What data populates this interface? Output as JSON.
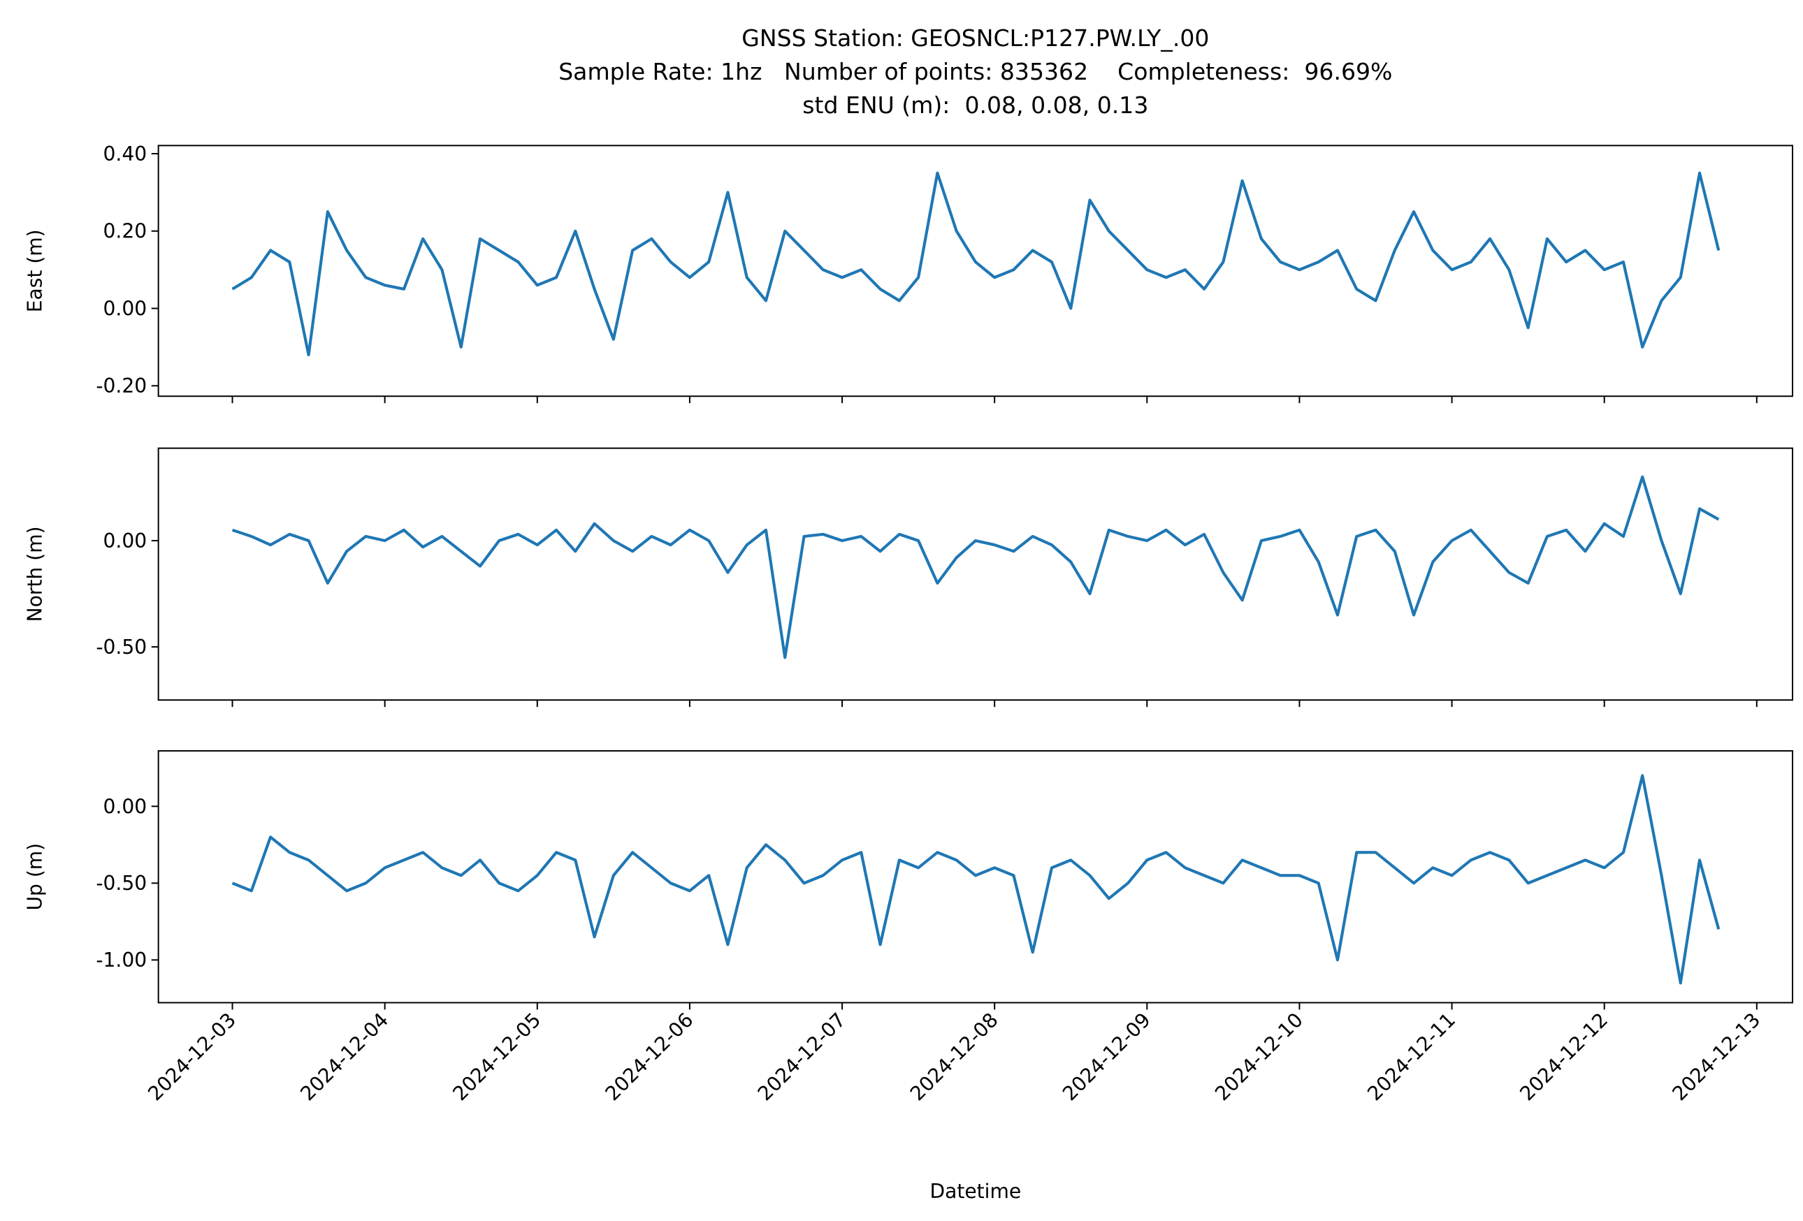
{
  "chart_data": [
    {
      "type": "line",
      "title": [
        "GNSS Station: GEOSNCL:P127.PW.LY_.00",
        "Sample Rate: 1hz   Number of points: 835362    Completeness:  96.69%",
        "std ENU (m):  0.08, 0.08, 0.13"
      ],
      "ylabel": "East (m)",
      "color": "#1f77b4",
      "xlim": [
        "2024-12-02T12:21",
        "2024-12-13T05:38"
      ],
      "xticks": [
        "2024-12-03",
        "2024-12-04",
        "2024-12-05",
        "2024-12-06",
        "2024-12-07",
        "2024-12-08",
        "2024-12-09",
        "2024-12-10",
        "2024-12-11",
        "2024-12-12",
        "2024-12-13"
      ],
      "ylim": [
        -0.227,
        0.421
      ],
      "yticks": [
        {
          "value": 0.4,
          "label": "0.40"
        },
        {
          "value": 0.2,
          "label": "0.20"
        },
        {
          "value": 0,
          "label": "0.00"
        },
        {
          "value": -0.2,
          "label": "-0.20"
        }
      ],
      "x": [
        "2024-12-03T00:00",
        "2024-12-03T03:00",
        "2024-12-03T06:00",
        "2024-12-03T09:00",
        "2024-12-03T12:00",
        "2024-12-03T15:00",
        "2024-12-03T18:00",
        "2024-12-03T21:00",
        "2024-12-04T00:00",
        "2024-12-04T03:00",
        "2024-12-04T06:00",
        "2024-12-04T09:00",
        "2024-12-04T12:00",
        "2024-12-04T15:00",
        "2024-12-04T18:00",
        "2024-12-04T21:00",
        "2024-12-05T00:00",
        "2024-12-05T03:00",
        "2024-12-05T06:00",
        "2024-12-05T09:00",
        "2024-12-05T12:00",
        "2024-12-05T15:00",
        "2024-12-05T18:00",
        "2024-12-05T21:00",
        "2024-12-06T00:00",
        "2024-12-06T03:00",
        "2024-12-06T06:00",
        "2024-12-06T09:00",
        "2024-12-06T12:00",
        "2024-12-06T15:00",
        "2024-12-06T18:00",
        "2024-12-06T21:00",
        "2024-12-07T00:00",
        "2024-12-07T03:00",
        "2024-12-07T06:00",
        "2024-12-07T09:00",
        "2024-12-07T12:00",
        "2024-12-07T15:00",
        "2024-12-07T18:00",
        "2024-12-07T21:00",
        "2024-12-08T00:00",
        "2024-12-08T03:00",
        "2024-12-08T06:00",
        "2024-12-08T09:00",
        "2024-12-08T12:00",
        "2024-12-08T15:00",
        "2024-12-08T18:00",
        "2024-12-08T21:00",
        "2024-12-09T00:00",
        "2024-12-09T03:00",
        "2024-12-09T06:00",
        "2024-12-09T09:00",
        "2024-12-09T12:00",
        "2024-12-09T15:00",
        "2024-12-09T18:00",
        "2024-12-09T21:00",
        "2024-12-10T00:00",
        "2024-12-10T03:00",
        "2024-12-10T06:00",
        "2024-12-10T09:00",
        "2024-12-10T12:00",
        "2024-12-10T15:00",
        "2024-12-10T18:00",
        "2024-12-10T21:00",
        "2024-12-11T00:00",
        "2024-12-11T03:00",
        "2024-12-11T06:00",
        "2024-12-11T09:00",
        "2024-12-11T12:00",
        "2024-12-11T15:00",
        "2024-12-11T18:00",
        "2024-12-11T21:00",
        "2024-12-12T00:00",
        "2024-12-12T03:00",
        "2024-12-12T06:00",
        "2024-12-12T09:00",
        "2024-12-12T12:00",
        "2024-12-12T15:00",
        "2024-12-12T18:00"
      ],
      "values": [
        0.05,
        0.08,
        0.15,
        0.12,
        -0.12,
        0.25,
        0.15,
        0.08,
        0.06,
        0.05,
        0.18,
        0.1,
        -0.1,
        0.18,
        0.15,
        0.12,
        0.06,
        0.08,
        0.2,
        0.05,
        -0.08,
        0.15,
        0.18,
        0.12,
        0.08,
        0.12,
        0.3,
        0.08,
        0.02,
        0.2,
        0.15,
        0.1,
        0.08,
        0.1,
        0.05,
        0.02,
        0.08,
        0.35,
        0.2,
        0.12,
        0.08,
        0.1,
        0.15,
        0.12,
        0.0,
        0.28,
        0.2,
        0.15,
        0.1,
        0.08,
        0.1,
        0.05,
        0.12,
        0.33,
        0.18,
        0.12,
        0.1,
        0.12,
        0.15,
        0.05,
        0.02,
        0.15,
        0.25,
        0.15,
        0.1,
        0.12,
        0.18,
        0.1,
        -0.05,
        0.18,
        0.12,
        0.15,
        0.1,
        0.12,
        -0.1,
        0.02,
        0.08,
        0.35,
        0.15
      ]
    },
    {
      "type": "line",
      "ylabel": "North (m)",
      "color": "#1f77b4",
      "xlim": [
        "2024-12-02T12:21",
        "2024-12-13T05:38"
      ],
      "xticks": [
        "2024-12-03",
        "2024-12-04",
        "2024-12-05",
        "2024-12-06",
        "2024-12-07",
        "2024-12-08",
        "2024-12-09",
        "2024-12-10",
        "2024-12-11",
        "2024-12-12",
        "2024-12-13"
      ],
      "ylim": [
        -0.75,
        0.435
      ],
      "yticks": [
        {
          "value": 0,
          "label": "0.00"
        },
        {
          "value": -0.5,
          "label": "-0.50"
        }
      ],
      "x": [
        "2024-12-03T00:00",
        "2024-12-03T03:00",
        "2024-12-03T06:00",
        "2024-12-03T09:00",
        "2024-12-03T12:00",
        "2024-12-03T15:00",
        "2024-12-03T18:00",
        "2024-12-03T21:00",
        "2024-12-04T00:00",
        "2024-12-04T03:00",
        "2024-12-04T06:00",
        "2024-12-04T09:00",
        "2024-12-04T12:00",
        "2024-12-04T15:00",
        "2024-12-04T18:00",
        "2024-12-04T21:00",
        "2024-12-05T00:00",
        "2024-12-05T03:00",
        "2024-12-05T06:00",
        "2024-12-05T09:00",
        "2024-12-05T12:00",
        "2024-12-05T15:00",
        "2024-12-05T18:00",
        "2024-12-05T21:00",
        "2024-12-06T00:00",
        "2024-12-06T03:00",
        "2024-12-06T06:00",
        "2024-12-06T09:00",
        "2024-12-06T12:00",
        "2024-12-06T15:00",
        "2024-12-06T18:00",
        "2024-12-06T21:00",
        "2024-12-07T00:00",
        "2024-12-07T03:00",
        "2024-12-07T06:00",
        "2024-12-07T09:00",
        "2024-12-07T12:00",
        "2024-12-07T15:00",
        "2024-12-07T18:00",
        "2024-12-07T21:00",
        "2024-12-08T00:00",
        "2024-12-08T03:00",
        "2024-12-08T06:00",
        "2024-12-08T09:00",
        "2024-12-08T12:00",
        "2024-12-08T15:00",
        "2024-12-08T18:00",
        "2024-12-08T21:00",
        "2024-12-09T00:00",
        "2024-12-09T03:00",
        "2024-12-09T06:00",
        "2024-12-09T09:00",
        "2024-12-09T12:00",
        "2024-12-09T15:00",
        "2024-12-09T18:00",
        "2024-12-09T21:00",
        "2024-12-10T00:00",
        "2024-12-10T03:00",
        "2024-12-10T06:00",
        "2024-12-10T09:00",
        "2024-12-10T12:00",
        "2024-12-10T15:00",
        "2024-12-10T18:00",
        "2024-12-10T21:00",
        "2024-12-11T00:00",
        "2024-12-11T03:00",
        "2024-12-11T06:00",
        "2024-12-11T09:00",
        "2024-12-11T12:00",
        "2024-12-11T15:00",
        "2024-12-11T18:00",
        "2024-12-11T21:00",
        "2024-12-12T00:00",
        "2024-12-12T03:00",
        "2024-12-12T06:00",
        "2024-12-12T09:00",
        "2024-12-12T12:00",
        "2024-12-12T15:00",
        "2024-12-12T18:00"
      ],
      "values": [
        0.05,
        0.02,
        -0.02,
        0.03,
        0.0,
        -0.2,
        -0.05,
        0.02,
        0.0,
        0.05,
        -0.03,
        0.02,
        -0.05,
        -0.12,
        0.0,
        0.03,
        -0.02,
        0.05,
        -0.05,
        0.08,
        0.0,
        -0.05,
        0.02,
        -0.02,
        0.05,
        0.0,
        -0.15,
        -0.02,
        0.05,
        -0.55,
        0.02,
        0.03,
        0.0,
        0.02,
        -0.05,
        0.03,
        0.0,
        -0.2,
        -0.08,
        0.0,
        -0.02,
        -0.05,
        0.02,
        -0.02,
        -0.1,
        -0.25,
        0.05,
        0.02,
        0.0,
        0.05,
        -0.02,
        0.03,
        -0.15,
        -0.28,
        0.0,
        0.02,
        0.05,
        -0.1,
        -0.35,
        0.02,
        0.05,
        -0.05,
        -0.35,
        -0.1,
        0.0,
        0.05,
        -0.05,
        -0.15,
        -0.2,
        0.02,
        0.05,
        -0.05,
        0.08,
        0.02,
        0.3,
        0.0,
        -0.25,
        0.15,
        0.1
      ]
    },
    {
      "type": "line",
      "ylabel": "Up (m)",
      "xlabel": "Datetime",
      "color": "#1f77b4",
      "xlim": [
        "2024-12-02T12:21",
        "2024-12-13T05:38"
      ],
      "xticks": [
        "2024-12-03",
        "2024-12-04",
        "2024-12-05",
        "2024-12-06",
        "2024-12-07",
        "2024-12-08",
        "2024-12-09",
        "2024-12-10",
        "2024-12-11",
        "2024-12-12",
        "2024-12-13"
      ],
      "ylim": [
        -1.278,
        0.361
      ],
      "yticks": [
        {
          "value": 0,
          "label": "0.00"
        },
        {
          "value": -0.5,
          "label": "-0.50"
        },
        {
          "value": -1,
          "label": "-1.00"
        }
      ],
      "x": [
        "2024-12-03T00:00",
        "2024-12-03T03:00",
        "2024-12-03T06:00",
        "2024-12-03T09:00",
        "2024-12-03T12:00",
        "2024-12-03T15:00",
        "2024-12-03T18:00",
        "2024-12-03T21:00",
        "2024-12-04T00:00",
        "2024-12-04T03:00",
        "2024-12-04T06:00",
        "2024-12-04T09:00",
        "2024-12-04T12:00",
        "2024-12-04T15:00",
        "2024-12-04T18:00",
        "2024-12-04T21:00",
        "2024-12-05T00:00",
        "2024-12-05T03:00",
        "2024-12-05T06:00",
        "2024-12-05T09:00",
        "2024-12-05T12:00",
        "2024-12-05T15:00",
        "2024-12-05T18:00",
        "2024-12-05T21:00",
        "2024-12-06T00:00",
        "2024-12-06T03:00",
        "2024-12-06T06:00",
        "2024-12-06T09:00",
        "2024-12-06T12:00",
        "2024-12-06T15:00",
        "2024-12-06T18:00",
        "2024-12-06T21:00",
        "2024-12-07T00:00",
        "2024-12-07T03:00",
        "2024-12-07T06:00",
        "2024-12-07T09:00",
        "2024-12-07T12:00",
        "2024-12-07T15:00",
        "2024-12-07T18:00",
        "2024-12-07T21:00",
        "2024-12-08T00:00",
        "2024-12-08T03:00",
        "2024-12-08T06:00",
        "2024-12-08T09:00",
        "2024-12-08T12:00",
        "2024-12-08T15:00",
        "2024-12-08T18:00",
        "2024-12-08T21:00",
        "2024-12-09T00:00",
        "2024-12-09T03:00",
        "2024-12-09T06:00",
        "2024-12-09T09:00",
        "2024-12-09T12:00",
        "2024-12-09T15:00",
        "2024-12-09T18:00",
        "2024-12-09T21:00",
        "2024-12-10T00:00",
        "2024-12-10T03:00",
        "2024-12-10T06:00",
        "2024-12-10T09:00",
        "2024-12-10T12:00",
        "2024-12-10T15:00",
        "2024-12-10T18:00",
        "2024-12-10T21:00",
        "2024-12-11T00:00",
        "2024-12-11T03:00",
        "2024-12-11T06:00",
        "2024-12-11T09:00",
        "2024-12-11T12:00",
        "2024-12-11T15:00",
        "2024-12-11T18:00",
        "2024-12-11T21:00",
        "2024-12-12T00:00",
        "2024-12-12T03:00",
        "2024-12-12T06:00",
        "2024-12-12T09:00",
        "2024-12-12T12:00",
        "2024-12-12T15:00",
        "2024-12-12T18:00"
      ],
      "values": [
        -0.5,
        -0.55,
        -0.2,
        -0.3,
        -0.35,
        -0.45,
        -0.55,
        -0.5,
        -0.4,
        -0.35,
        -0.3,
        -0.4,
        -0.45,
        -0.35,
        -0.5,
        -0.55,
        -0.45,
        -0.3,
        -0.35,
        -0.85,
        -0.45,
        -0.3,
        -0.4,
        -0.5,
        -0.55,
        -0.45,
        -0.9,
        -0.4,
        -0.25,
        -0.35,
        -0.5,
        -0.45,
        -0.35,
        -0.3,
        -0.9,
        -0.35,
        -0.4,
        -0.3,
        -0.35,
        -0.45,
        -0.4,
        -0.45,
        -0.95,
        -0.4,
        -0.35,
        -0.45,
        -0.6,
        -0.5,
        -0.35,
        -0.3,
        -0.4,
        -0.45,
        -0.5,
        -0.35,
        -0.4,
        -0.45,
        -0.45,
        -0.5,
        -1.0,
        -0.3,
        -0.3,
        -0.4,
        -0.5,
        -0.4,
        -0.45,
        -0.35,
        -0.3,
        -0.35,
        -0.5,
        -0.45,
        -0.4,
        -0.35,
        -0.4,
        -0.3,
        0.2,
        -0.45,
        -1.15,
        -0.35,
        -0.8
      ]
    }
  ]
}
